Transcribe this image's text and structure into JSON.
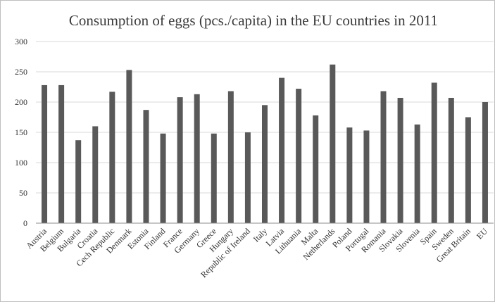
{
  "chart_data": {
    "type": "bar",
    "title": "Consumption of eggs (pcs./capita) in the EU countries in 2011",
    "xlabel": "",
    "ylabel": "",
    "ylim": [
      0,
      300
    ],
    "yticks": [
      0,
      50,
      100,
      150,
      200,
      250,
      300
    ],
    "grid": true,
    "legend": "none",
    "bar_color": "#595959",
    "categories": [
      "Austria",
      "Belgium",
      "Bulgaria",
      "Croatia",
      "Cech Republic",
      "Denmark",
      "Estonia",
      "Finland",
      "France",
      "Germany",
      "Greece",
      "Hungary",
      "Republic of Ireland",
      "Italy",
      "Latvia",
      "Lithuania",
      "Malta",
      "Netherlands",
      "Poland",
      "Portugal",
      "Romania",
      "Slovakia",
      "Slovenia",
      "Spain",
      "Sweden",
      "Great Britain",
      "EU"
    ],
    "values": [
      228,
      228,
      137,
      160,
      217,
      253,
      187,
      148,
      208,
      213,
      148,
      218,
      150,
      195,
      240,
      222,
      178,
      262,
      158,
      153,
      218,
      207,
      163,
      232,
      207,
      175,
      200
    ]
  }
}
